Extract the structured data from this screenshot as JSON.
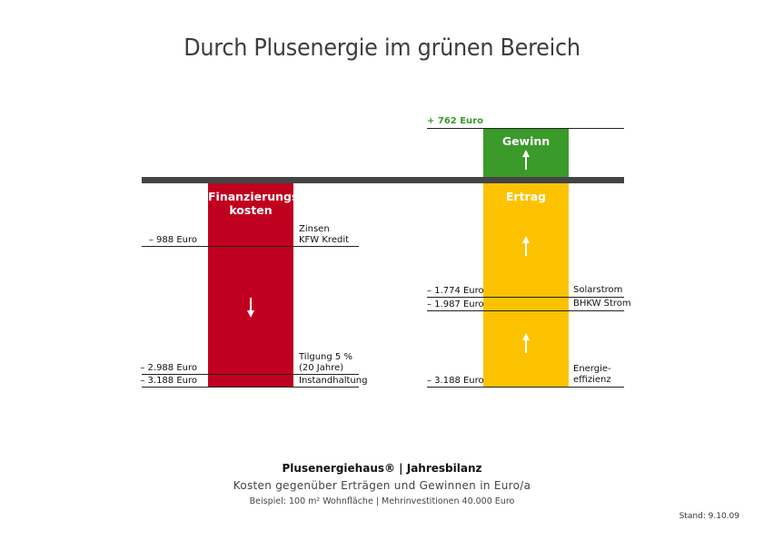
{
  "title": "Durch Plusenergie im grünen Bereich",
  "chart_data": {
    "type": "bar",
    "unit": "Euro/a",
    "bars": [
      {
        "name": "Finanzierungs-\nkosten",
        "color": "#c0001f",
        "from": 0,
        "to": -3188,
        "direction": "down"
      },
      {
        "name": "Ertrag",
        "color": "#fcc200",
        "from": -3188,
        "to": 0,
        "direction": "up"
      },
      {
        "name": "Gewinn",
        "color": "#3a9a2a",
        "from": 0,
        "to": 762,
        "direction": "up"
      }
    ],
    "left_markers": [
      {
        "value": -988,
        "label": "– 988 Euro",
        "desc": "Zinsen\nKFW Kredit"
      },
      {
        "value": -2988,
        "label": "– 2.988 Euro",
        "desc": "Tilgung 5 %\n(20 Jahre)"
      },
      {
        "value": -3188,
        "label": "– 3.188 Euro",
        "desc": "Instandhaltung"
      }
    ],
    "right_markers": [
      {
        "value": 762,
        "label": "+ 762 Euro",
        "desc": ""
      },
      {
        "value": -1774,
        "label": "– 1.774 Euro",
        "desc": "Solarstrom"
      },
      {
        "value": -1987,
        "label": "– 1.987 Euro",
        "desc": "BHKW Strom"
      },
      {
        "value": -3188,
        "label": "– 3.188 Euro",
        "desc": "Energie-\neffizienz"
      }
    ]
  },
  "footer": {
    "line1": "Plusenergiehaus® | Jahresbilanz",
    "line2": "Kosten gegenüber Erträgen und Gewinnen in Euro/a",
    "line3": "Beispiel:  100 m² Wohnfläche  |  Mehrinvestitionen 40.000 Euro",
    "stand": "Stand: 9.10.09"
  }
}
